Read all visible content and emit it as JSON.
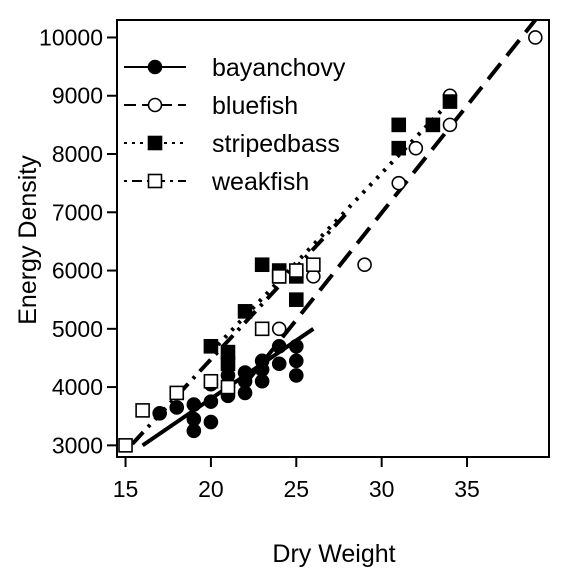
{
  "chart_data": {
    "type": "scatter",
    "xlabel": "Dry Weight",
    "ylabel": "Energy Density",
    "xlim": [
      14.5,
      39.8
    ],
    "ylim": [
      2800,
      10300
    ],
    "x_ticks": [
      15,
      20,
      25,
      30,
      35
    ],
    "y_ticks": [
      3000,
      4000,
      5000,
      6000,
      7000,
      8000,
      9000,
      10000
    ],
    "grid": false,
    "legend_position": "top-left",
    "series": [
      {
        "name": "bayanchovy",
        "marker": "filled-circle",
        "line": "solid",
        "fit_x": [
          16,
          26
        ],
        "fit_y": [
          3000,
          5000
        ],
        "points": [
          [
            17,
            3550
          ],
          [
            18,
            3650
          ],
          [
            19,
            3250
          ],
          [
            19,
            3450
          ],
          [
            19,
            3700
          ],
          [
            20,
            3400
          ],
          [
            20,
            3750
          ],
          [
            20,
            4050
          ],
          [
            21,
            3850
          ],
          [
            21,
            4000
          ],
          [
            21,
            4200
          ],
          [
            22,
            3900
          ],
          [
            22,
            4100
          ],
          [
            22,
            4250
          ],
          [
            23,
            4100
          ],
          [
            23,
            4300
          ],
          [
            23,
            4450
          ],
          [
            24,
            4400
          ],
          [
            24,
            4700
          ],
          [
            25,
            4200
          ],
          [
            25,
            4450
          ],
          [
            25,
            4700
          ]
        ]
      },
      {
        "name": "bluefish",
        "marker": "open-circle",
        "line": "dashed",
        "fit_x": [
          22,
          39
        ],
        "fit_y": [
          4050,
          10300
        ],
        "points": [
          [
            24,
            5000
          ],
          [
            26,
            5900
          ],
          [
            29,
            6100
          ],
          [
            31,
            7500
          ],
          [
            32,
            8100
          ],
          [
            34,
            8500
          ],
          [
            34,
            9000
          ],
          [
            39,
            10000
          ]
        ]
      },
      {
        "name": "stripedbass",
        "marker": "filled-square",
        "line": "dotted",
        "fit_x": [
          20,
          34
        ],
        "fit_y": [
          4600,
          8900
        ],
        "points": [
          [
            20,
            4700
          ],
          [
            21,
            4400
          ],
          [
            21,
            4600
          ],
          [
            22,
            5300
          ],
          [
            23,
            6100
          ],
          [
            24,
            5900
          ],
          [
            24,
            6000
          ],
          [
            25,
            5500
          ],
          [
            25,
            5900
          ],
          [
            31,
            8100
          ],
          [
            31,
            8500
          ],
          [
            33,
            8500
          ],
          [
            34,
            8900
          ]
        ]
      },
      {
        "name": "weakfish",
        "marker": "open-square",
        "line": "dotdash",
        "fit_x": [
          15,
          28
        ],
        "fit_y": [
          2900,
          7000
        ],
        "points": [
          [
            15,
            3000
          ],
          [
            16,
            3600
          ],
          [
            18,
            3900
          ],
          [
            20,
            4100
          ],
          [
            21,
            4000
          ],
          [
            23,
            5000
          ],
          [
            24,
            5900
          ],
          [
            25,
            6000
          ],
          [
            26,
            6100
          ]
        ]
      }
    ]
  }
}
